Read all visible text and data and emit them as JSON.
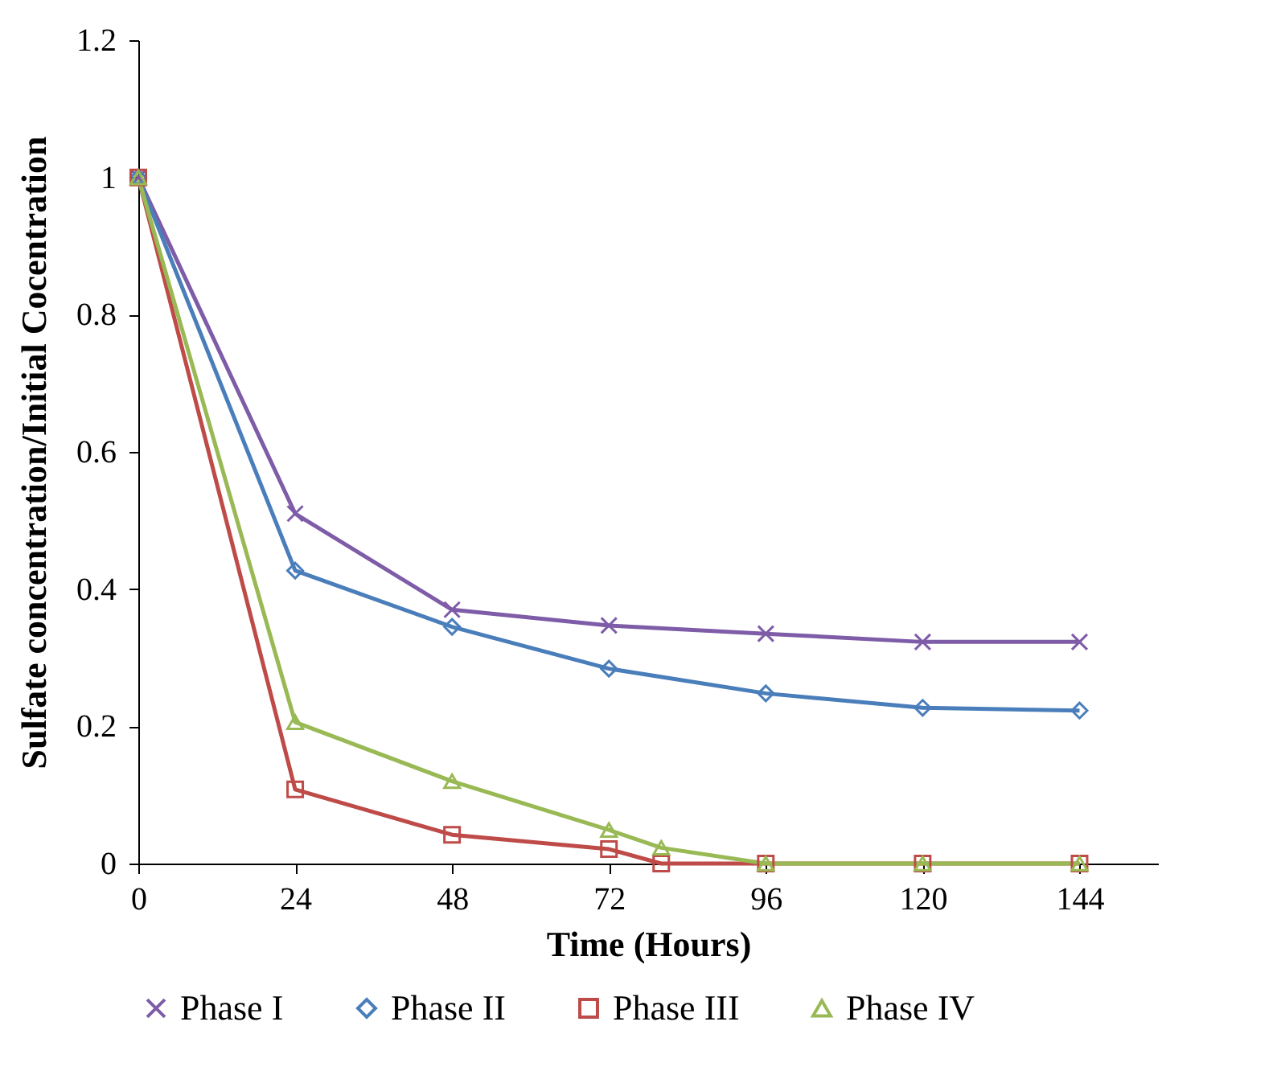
{
  "chart_data": {
    "type": "line",
    "xlabel": "Time (Hours)",
    "ylabel": "Sulfate concentration/Initial Cocentration",
    "xlim": [
      0,
      156
    ],
    "xticks": [
      0,
      24,
      48,
      72,
      96,
      120,
      144
    ],
    "ylim": [
      0,
      1.2
    ],
    "yticks": [
      0,
      0.2,
      0.4,
      0.6,
      0.8,
      1,
      1.2
    ],
    "grid": false,
    "legend": "bottom",
    "series": [
      {
        "name": "Phase I",
        "color": "#7e5ca8",
        "marker": "cross",
        "x": [
          0,
          24,
          48,
          72,
          96,
          120,
          144
        ],
        "values": [
          1,
          0.51,
          0.37,
          0.347,
          0.335,
          0.323,
          0.323
        ]
      },
      {
        "name": "Phase II",
        "color": "#4a7ebb",
        "marker": "diamond",
        "x": [
          0,
          24,
          48,
          72,
          96,
          120,
          144
        ],
        "values": [
          1,
          0.427,
          0.345,
          0.284,
          0.248,
          0.227,
          0.223
        ]
      },
      {
        "name": "Phase III",
        "color": "#be4b48",
        "marker": "square",
        "x": [
          0,
          24,
          48,
          72,
          80,
          96,
          120,
          144
        ],
        "values": [
          1,
          0.108,
          0.042,
          0.021,
          0,
          0,
          0,
          0
        ]
      },
      {
        "name": "Phase IV",
        "color": "#98b954",
        "marker": "triangle",
        "x": [
          0,
          24,
          48,
          72,
          80,
          96,
          120,
          144
        ],
        "values": [
          1,
          0.206,
          0.12,
          0.049,
          0.023,
          0,
          0,
          0
        ]
      }
    ]
  }
}
